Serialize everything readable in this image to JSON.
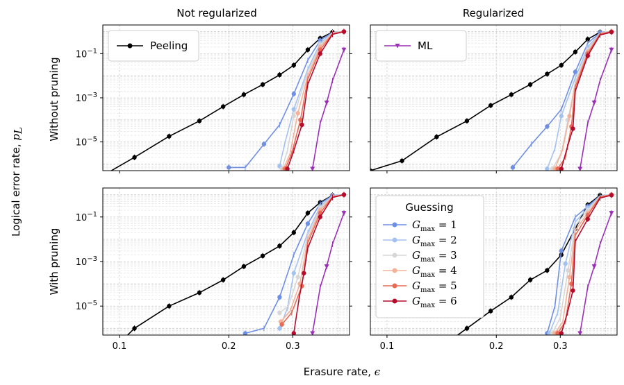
{
  "figure": {
    "ylabel": "Logical error rate, ",
    "ylabel_symbol": "p",
    "ylabel_sub": "L",
    "xlabel": "Erasure rate, ",
    "xlabel_symbol": "ϵ"
  },
  "chart_data": {
    "type": "line",
    "xscale": "log",
    "yscale": "log",
    "xlim": [
      0.09,
      0.43
    ],
    "ylim": [
      5e-07,
      2
    ],
    "x_ticks": [
      0.1,
      0.2,
      0.3
    ],
    "x_tick_labels": [
      "0.1",
      "0.2",
      "0.3"
    ],
    "y_ticks": [
      0.1,
      0.001,
      1e-05
    ],
    "y_tick_bases": [
      "10",
      "10",
      "10"
    ],
    "y_tick_exps": [
      "−1",
      "−3",
      "−5"
    ],
    "col_titles": [
      "Not regularized",
      "Regularized"
    ],
    "row_titles": [
      "Without pruning",
      "With pruning"
    ],
    "colors": {
      "Peeling": "#000000",
      "ML": "#9b2fb6",
      "G1": "#6f8fe3",
      "G2": "#a4c2f0",
      "G3": "#d7d7d7",
      "G4": "#f3b29a",
      "G5": "#e66a55",
      "G6": "#b50c2b"
    },
    "legend1": {
      "entries": [
        {
          "label": "Peeling",
          "key": "Peeling",
          "marker": "circle"
        },
        {
          "label": "ML",
          "key": "ML",
          "marker": "triangle-down"
        }
      ]
    },
    "legend2": {
      "title": "Guessing",
      "entries": [
        {
          "var": "G",
          "sub": "max",
          "eq": " = 1",
          "key": "G1"
        },
        {
          "var": "G",
          "sub": "max",
          "eq": " = 2",
          "key": "G2"
        },
        {
          "var": "G",
          "sub": "max",
          "eq": " = 3",
          "key": "G3"
        },
        {
          "var": "G",
          "sub": "max",
          "eq": " = 4",
          "key": "G4"
        },
        {
          "var": "G",
          "sub": "max",
          "eq": " = 5",
          "key": "G5"
        },
        {
          "var": "G",
          "sub": "max",
          "eq": " = 6",
          "key": "G6"
        }
      ]
    },
    "panels": [
      {
        "row": 0,
        "col": 0,
        "series": [
          {
            "key": "Peeling",
            "x": [
              0.09,
              0.11,
              0.137,
              0.166,
              0.193,
              0.22,
              0.248,
              0.276,
              0.302,
              0.33,
              0.357,
              0.386
            ],
            "y": [
              3e-07,
              2e-06,
              1.8e-05,
              9e-05,
              0.0004,
              0.0014,
              0.004,
              0.011,
              0.03,
              0.15,
              0.5,
              0.95
            ]
          },
          {
            "key": "G1",
            "x": [
              0.2,
              0.222,
              0.25,
              0.276,
              0.302,
              0.33,
              0.357,
              0.386,
              0.415
            ],
            "y": [
              7e-07,
              7e-07,
              8e-06,
              6e-05,
              0.0015,
              0.05,
              0.4,
              0.92,
              1.0
            ]
          },
          {
            "key": "G2",
            "x": [
              0.276,
              0.285,
              0.302,
              0.33,
              0.357,
              0.386,
              0.415
            ],
            "y": [
              8e-07,
              8e-06,
              0.0003,
              0.02,
              0.3,
              0.9,
              1.0
            ]
          },
          {
            "key": "G3",
            "x": [
              0.28,
              0.29,
              0.302,
              0.33,
              0.357,
              0.386,
              0.415
            ],
            "y": [
              6e-07,
              4e-06,
              0.00015,
              0.015,
              0.25,
              0.87,
              1.0
            ]
          },
          {
            "key": "G4",
            "x": [
              0.283,
              0.295,
              0.31,
              0.33,
              0.357,
              0.386,
              0.415
            ],
            "y": [
              6e-07,
              3e-06,
              0.0002,
              0.01,
              0.2,
              0.85,
              1.0
            ]
          },
          {
            "key": "G5",
            "x": [
              0.286,
              0.298,
              0.315,
              0.33,
              0.357,
              0.386,
              0.415
            ],
            "y": [
              6e-07,
              3e-06,
              0.0001,
              0.007,
              0.15,
              0.8,
              1.0
            ]
          },
          {
            "key": "G6",
            "x": [
              0.29,
              0.302,
              0.318,
              0.33,
              0.357,
              0.386,
              0.415
            ],
            "y": [
              6e-07,
              4e-06,
              6e-05,
              0.004,
              0.1,
              0.75,
              1.0
            ]
          },
          {
            "key": "ML",
            "x": [
              0.34,
              0.357,
              0.372,
              0.386,
              0.415
            ],
            "y": [
              6e-07,
              7e-05,
              0.0006,
              0.006,
              0.15
            ]
          }
        ]
      },
      {
        "row": 0,
        "col": 1,
        "series": [
          {
            "key": "Peeling",
            "x": [
              0.09,
              0.11,
              0.137,
              0.166,
              0.193,
              0.22,
              0.248,
              0.276,
              0.302,
              0.33,
              0.357,
              0.386
            ],
            "y": [
              5e-07,
              1.4e-06,
              1.7e-05,
              9e-05,
              0.00045,
              0.0014,
              0.004,
              0.012,
              0.03,
              0.12,
              0.45,
              0.95
            ]
          },
          {
            "key": "G1",
            "x": [
              0.222,
              0.25,
              0.276,
              0.302,
              0.33,
              0.357,
              0.386,
              0.415
            ],
            "y": [
              7e-07,
              8e-06,
              5e-05,
              0.0003,
              0.015,
              0.3,
              0.9,
              1.0
            ]
          },
          {
            "key": "G2",
            "x": [
              0.276,
              0.29,
              0.302,
              0.33,
              0.357,
              0.386,
              0.415
            ],
            "y": [
              6e-07,
              5e-06,
              0.00015,
              0.008,
              0.2,
              0.87,
              1.0
            ]
          },
          {
            "key": "G3",
            "x": [
              0.285,
              0.302,
              0.315,
              0.33,
              0.357,
              0.386,
              0.415
            ],
            "y": [
              6e-07,
              3e-06,
              0.0001,
              0.005,
              0.15,
              0.85,
              1.0
            ]
          },
          {
            "key": "G4",
            "x": [
              0.29,
              0.305,
              0.318,
              0.33,
              0.357,
              0.386,
              0.415
            ],
            "y": [
              6e-07,
              5e-06,
              0.00015,
              0.004,
              0.12,
              0.82,
              1.0
            ]
          },
          {
            "key": "G5",
            "x": [
              0.295,
              0.31,
              0.322,
              0.33,
              0.357,
              0.386,
              0.415
            ],
            "y": [
              6e-07,
              2e-06,
              5e-05,
              0.003,
              0.1,
              0.78,
              1.0
            ]
          },
          {
            "key": "G6",
            "x": [
              0.302,
              0.314,
              0.325,
              0.33,
              0.357,
              0.386,
              0.415
            ],
            "y": [
              6e-07,
              6e-06,
              4e-05,
              0.002,
              0.08,
              0.7,
              0.95
            ]
          },
          {
            "key": "ML",
            "x": [
              0.34,
              0.357,
              0.372,
              0.386,
              0.415
            ],
            "y": [
              6e-07,
              7e-05,
              0.0006,
              0.006,
              0.15
            ]
          }
        ]
      },
      {
        "row": 1,
        "col": 0,
        "series": [
          {
            "key": "Peeling",
            "x": [
              0.09,
              0.11,
              0.137,
              0.166,
              0.193,
              0.22,
              0.248,
              0.276,
              0.302,
              0.33,
              0.357,
              0.386
            ],
            "y": [
              4e-08,
              1e-06,
              1e-05,
              4e-05,
              0.00015,
              0.0006,
              0.0018,
              0.005,
              0.02,
              0.15,
              0.45,
              0.95
            ]
          },
          {
            "key": "G1",
            "x": [
              0.222,
              0.25,
              0.276,
              0.302,
              0.33,
              0.357,
              0.386,
              0.415
            ],
            "y": [
              6e-07,
              1e-06,
              2.5e-05,
              0.002,
              0.05,
              0.4,
              0.92,
              1.0
            ]
          },
          {
            "key": "G2",
            "x": [
              0.276,
              0.29,
              0.302,
              0.33,
              0.357,
              0.386,
              0.415
            ],
            "y": [
              1e-06,
              8e-06,
              0.0003,
              0.02,
              0.3,
              0.88,
              1.0
            ]
          },
          {
            "key": "G3",
            "x": [
              0.276,
              0.292,
              0.31,
              0.33,
              0.357,
              0.386,
              0.415
            ],
            "y": [
              5e-06,
              1e-05,
              0.0002,
              0.015,
              0.25,
              0.86,
              1.0
            ]
          },
          {
            "key": "G4",
            "x": [
              0.278,
              0.295,
              0.314,
              0.33,
              0.357,
              0.386,
              0.415
            ],
            "y": [
              2e-06,
              6e-06,
              0.0001,
              0.01,
              0.2,
              0.84,
              1.0
            ]
          },
          {
            "key": "G5",
            "x": [
              0.28,
              0.298,
              0.318,
              0.33,
              0.357,
              0.386,
              0.415
            ],
            "y": [
              1.5e-06,
              5e-06,
              8e-05,
              0.007,
              0.15,
              0.8,
              1.0
            ]
          },
          {
            "key": "G6",
            "x": [
              0.302,
              0.312,
              0.322,
              0.33,
              0.357,
              0.386,
              0.415
            ],
            "y": [
              6e-07,
              2e-05,
              0.0003,
              0.004,
              0.1,
              0.75,
              1.0
            ]
          },
          {
            "key": "ML",
            "x": [
              0.34,
              0.357,
              0.372,
              0.386,
              0.415
            ],
            "y": [
              6e-07,
              7e-05,
              0.0006,
              0.006,
              0.15
            ]
          }
        ]
      },
      {
        "row": 1,
        "col": 1,
        "series": [
          {
            "key": "Peeling",
            "x": [
              0.15,
              0.166,
              0.193,
              0.22,
              0.248,
              0.276,
              0.302,
              0.33,
              0.357,
              0.386
            ],
            "y": [
              3e-07,
              1e-06,
              6e-06,
              2.5e-05,
              0.00015,
              0.0004,
              0.002,
              0.03,
              0.35,
              0.95
            ]
          },
          {
            "key": "G1",
            "x": [
              0.276,
              0.29,
              0.302,
              0.33,
              0.357,
              0.386,
              0.415
            ],
            "y": [
              6e-07,
              1e-05,
              0.003,
              0.1,
              0.3,
              0.9,
              1.0
            ]
          },
          {
            "key": "G2",
            "x": [
              0.28,
              0.295,
              0.31,
              0.33,
              0.357,
              0.386,
              0.415
            ],
            "y": [
              6e-07,
              5e-06,
              0.0008,
              0.06,
              0.25,
              0.87,
              1.0
            ]
          },
          {
            "key": "G3",
            "x": [
              0.285,
              0.3,
              0.315,
              0.33,
              0.357,
              0.386,
              0.415
            ],
            "y": [
              6e-07,
              3e-06,
              0.0004,
              0.04,
              0.2,
              0.85,
              1.0
            ]
          },
          {
            "key": "G4",
            "x": [
              0.29,
              0.305,
              0.318,
              0.33,
              0.357,
              0.386,
              0.415
            ],
            "y": [
              6e-07,
              2e-06,
              0.0002,
              0.025,
              0.15,
              0.82,
              1.0
            ]
          },
          {
            "key": "G5",
            "x": [
              0.295,
              0.31,
              0.322,
              0.33,
              0.357,
              0.386,
              0.415
            ],
            "y": [
              6e-07,
              2e-06,
              0.0001,
              0.015,
              0.12,
              0.78,
              1.0
            ]
          },
          {
            "key": "G6",
            "x": [
              0.302,
              0.314,
              0.325,
              0.33,
              0.357,
              0.386,
              0.415
            ],
            "y": [
              6e-07,
              5e-06,
              5e-05,
              0.008,
              0.08,
              0.7,
              0.95
            ]
          },
          {
            "key": "ML",
            "x": [
              0.34,
              0.357,
              0.372,
              0.386,
              0.415
            ],
            "y": [
              6e-07,
              7e-05,
              0.0006,
              0.006,
              0.15
            ]
          }
        ]
      }
    ]
  }
}
